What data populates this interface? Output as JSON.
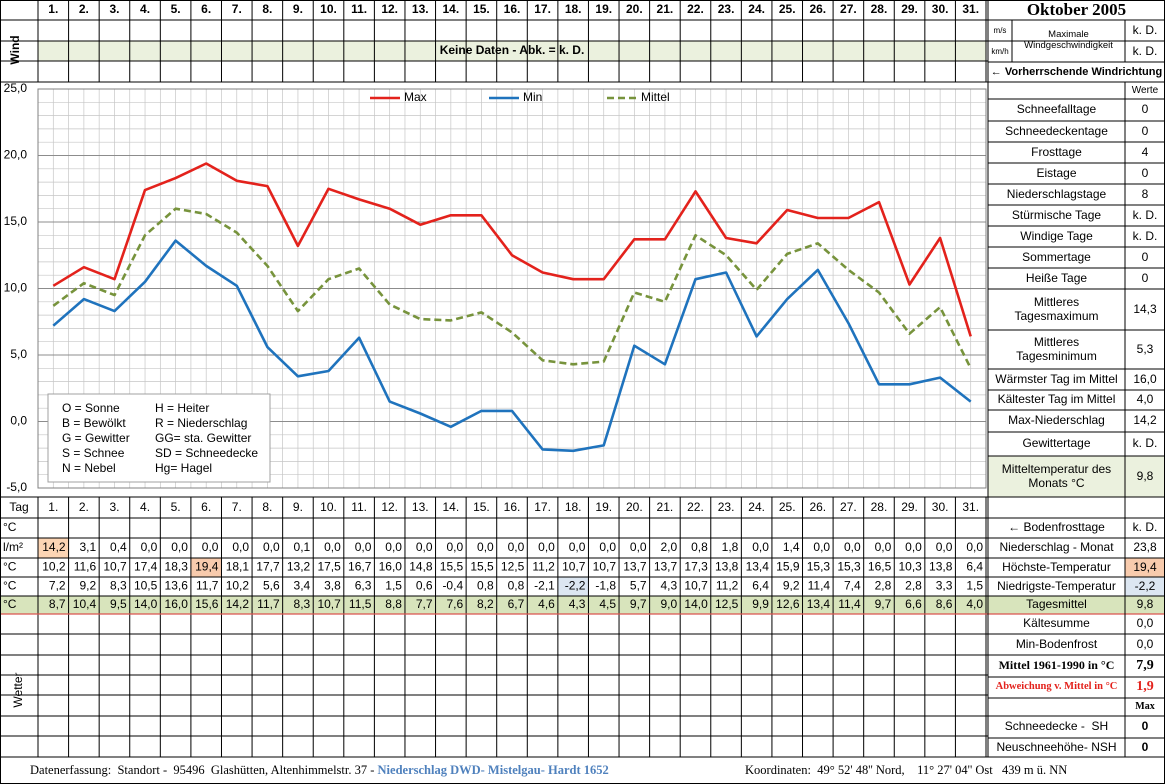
{
  "header": {
    "title": "Oktober 2005",
    "wind_label": "Wind",
    "no_data": "Keine Daten - Abk. = k. D.",
    "unit_ms": "m/s",
    "unit_kmh": "km/h",
    "max_wind_label": "Maximale Windgeschwindigkeit",
    "max_wind_ms": "k. D.",
    "max_wind_kmh": "k. D.",
    "wind_direction": "← Vorherrschende Windrichtung"
  },
  "chart_data": {
    "type": "line",
    "categories": [
      "1.",
      "2.",
      "3.",
      "4.",
      "5.",
      "6.",
      "7.",
      "8.",
      "9.",
      "10.",
      "11.",
      "12.",
      "13.",
      "14.",
      "15.",
      "16.",
      "17.",
      "18.",
      "19.",
      "20.",
      "21.",
      "22.",
      "23.",
      "24.",
      "25.",
      "26.",
      "27.",
      "28.",
      "29.",
      "30.",
      "31."
    ],
    "ylim": [
      -5,
      25
    ],
    "yticks": [
      {
        "value": 25,
        "label": "25,0"
      },
      {
        "value": 20,
        "label": "20,0"
      },
      {
        "value": 15,
        "label": "15,0"
      },
      {
        "value": 10,
        "label": "10,0"
      },
      {
        "value": 5,
        "label": "5,0"
      },
      {
        "value": 0,
        "label": "0,0"
      },
      {
        "value": -5,
        "label": "-5,0"
      }
    ],
    "grid": true,
    "legend": "top",
    "series": [
      {
        "name": "Max",
        "color": "#e3221c",
        "dash": false,
        "values": [
          10.2,
          11.6,
          10.7,
          17.4,
          18.3,
          19.4,
          18.1,
          17.7,
          13.2,
          17.5,
          16.7,
          16.0,
          14.8,
          15.5,
          15.5,
          12.5,
          11.2,
          10.7,
          10.7,
          13.7,
          13.7,
          17.3,
          13.8,
          13.4,
          15.9,
          15.3,
          15.3,
          16.5,
          10.3,
          13.8,
          6.4
        ],
        "value_labels": [
          "10,2",
          "11,6",
          "10,7",
          "17,4",
          "18,3",
          "19,4",
          "18,1",
          "17,7",
          "13,2",
          "17,5",
          "16,7",
          "16,0",
          "14,8",
          "15,5",
          "15,5",
          "12,5",
          "11,2",
          "10,7",
          "10,7",
          "13,7",
          "13,7",
          "17,3",
          "13,8",
          "13,4",
          "15,9",
          "15,3",
          "15,3",
          "16,5",
          "10,3",
          "13,8",
          "6,4"
        ]
      },
      {
        "name": "Min",
        "color": "#1f73bd",
        "dash": false,
        "values": [
          7.2,
          9.2,
          8.3,
          10.5,
          13.6,
          11.7,
          10.2,
          5.6,
          3.4,
          3.8,
          6.3,
          1.5,
          0.6,
          -0.4,
          0.8,
          0.8,
          -2.1,
          -2.2,
          -1.8,
          5.7,
          4.3,
          10.7,
          11.2,
          6.4,
          9.2,
          11.4,
          7.4,
          2.8,
          2.8,
          3.3,
          1.5
        ],
        "value_labels": [
          "7,2",
          "9,2",
          "8,3",
          "10,5",
          "13,6",
          "11,7",
          "10,2",
          "5,6",
          "3,4",
          "3,8",
          "6,3",
          "1,5",
          "0,6",
          "-0,4",
          "0,8",
          "0,8",
          "-2,1",
          "-2,2",
          "-1,8",
          "5,7",
          "4,3",
          "10,7",
          "11,2",
          "6,4",
          "9,2",
          "11,4",
          "7,4",
          "2,8",
          "2,8",
          "3,3",
          "1,5"
        ]
      },
      {
        "name": "Mittel",
        "color": "#77933c",
        "dash": true,
        "values": [
          8.7,
          10.4,
          9.5,
          14.0,
          16.0,
          15.6,
          14.2,
          11.7,
          8.3,
          10.7,
          11.5,
          8.8,
          7.7,
          7.6,
          8.2,
          6.7,
          4.6,
          4.3,
          4.5,
          9.7,
          9.0,
          14.0,
          12.5,
          9.9,
          12.6,
          13.4,
          11.4,
          9.7,
          6.6,
          8.6,
          4.0
        ],
        "value_labels": [
          "8,7",
          "10,4",
          "9,5",
          "14,0",
          "16,0",
          "15,6",
          "14,2",
          "11,7",
          "8,3",
          "10,7",
          "11,5",
          "8,8",
          "7,7",
          "7,6",
          "8,2",
          "6,7",
          "4,6",
          "4,3",
          "4,5",
          "9,7",
          "9,0",
          "14,0",
          "12,5",
          "9,9",
          "12,6",
          "13,4",
          "11,4",
          "9,7",
          "6,6",
          "8,6",
          "4,0"
        ]
      }
    ]
  },
  "weather_legend": [
    [
      "O = Sonne",
      "H = Heiter"
    ],
    [
      "B = Bewölkt",
      "R = Niederschlag"
    ],
    [
      "G = Gewitter",
      "GG= sta. Gewitter"
    ],
    [
      "S = Schnee",
      "SD = Schneedecke"
    ],
    [
      "N = Nebel",
      "Hg= Hagel"
    ]
  ],
  "summary": {
    "header": "Werte",
    "rows": [
      {
        "label": "Schneefalltage",
        "value": 0
      },
      {
        "label": "Schneedeckentage",
        "value": 0
      },
      {
        "label": "Frosttage",
        "value": 4
      },
      {
        "label": "Eistage",
        "value": 0
      },
      {
        "label": "Niederschlagstage",
        "value": 8
      },
      {
        "label": "Stürmische Tage",
        "value": "k. D."
      },
      {
        "label": "Windige Tage",
        "value": "k. D."
      },
      {
        "label": "Sommertage",
        "value": 0
      },
      {
        "label": "Heiße Tage",
        "value": 0
      },
      {
        "label": "Mittleres Tagesmaximum",
        "value": "14,3"
      },
      {
        "label": "Mittleres Tagesminimum",
        "value": "5,3"
      },
      {
        "label": "Wärmster Tag im Mittel",
        "value": "16,0"
      },
      {
        "label": "Kältester Tag im Mittel",
        "value": "4,0"
      },
      {
        "label": "Max-Niederschlag",
        "value": "14,2"
      },
      {
        "label": "Gewittertage",
        "value": "k. D."
      },
      {
        "label": "Mitteltemperatur des Monats °C",
        "value": "9,8"
      }
    ]
  },
  "table": {
    "day_label": "Tag",
    "frost": {
      "unit": "°C",
      "label": "← Bodenfrosttage",
      "total": "k. D."
    },
    "precipitation": {
      "unit": "l/m²",
      "label": "Niederschlag - Monat",
      "total": "23,8",
      "values": [
        14.2,
        3.1,
        0.4,
        0.0,
        0.0,
        0.0,
        0.0,
        0.0,
        0.1,
        0.0,
        0.0,
        0.0,
        0.0,
        0.0,
        0.0,
        0.0,
        0.0,
        0.0,
        0.0,
        0.0,
        2.0,
        0.8,
        1.8,
        0.0,
        1.4,
        0.0,
        0.0,
        0.0,
        0.0,
        0.0,
        0.0
      ],
      "value_labels": [
        "14,2",
        "3,1",
        "0,4",
        "0,0",
        "0,0",
        "0,0",
        "0,0",
        "0,0",
        "0,1",
        "0,0",
        "0,0",
        "0,0",
        "0,0",
        "0,0",
        "0,0",
        "0,0",
        "0,0",
        "0,0",
        "0,0",
        "0,0",
        "2,0",
        "0,8",
        "1,8",
        "0,0",
        "1,4",
        "0,0",
        "0,0",
        "0,0",
        "0,0",
        "0,0",
        "0,0"
      ]
    },
    "max": {
      "unit": "°C",
      "label": "Höchste-Temperatur",
      "total": "19,4"
    },
    "min": {
      "unit": "°C",
      "label": "Niedrigste-Temperatur",
      "total": "-2,2"
    },
    "mean": {
      "unit": "°C",
      "label": "Tagesmittel",
      "total": "9,8"
    },
    "extra": [
      {
        "label": "Kältesumme",
        "value": "0,0"
      },
      {
        "label": "Min-Bodenfrost",
        "value": "0,0"
      }
    ],
    "weather_label": "Wetter",
    "reference": [
      {
        "label": "Mittel 1961-1990 in °C",
        "value": "7,9"
      },
      {
        "label": "Abweichung v. Mittel in °C",
        "value": "1,9"
      }
    ],
    "max_header": "Max",
    "snow": [
      {
        "label": "Schneedecke -  SH",
        "value": 0
      },
      {
        "label": "Neuschneehöhe- NSH",
        "value": 0
      }
    ]
  },
  "footer": {
    "location": "Datenerfassung:  Standort -  95496  Glashütten, Altenhimmelstr. 37 - ",
    "source": "Niederschlag DWD- Mistelgau- Hardt 1652",
    "coordinates": "Koordinaten:  49° 52' 48'' Nord,    11° 27' 04'' Ost   439 m ü. NN"
  }
}
